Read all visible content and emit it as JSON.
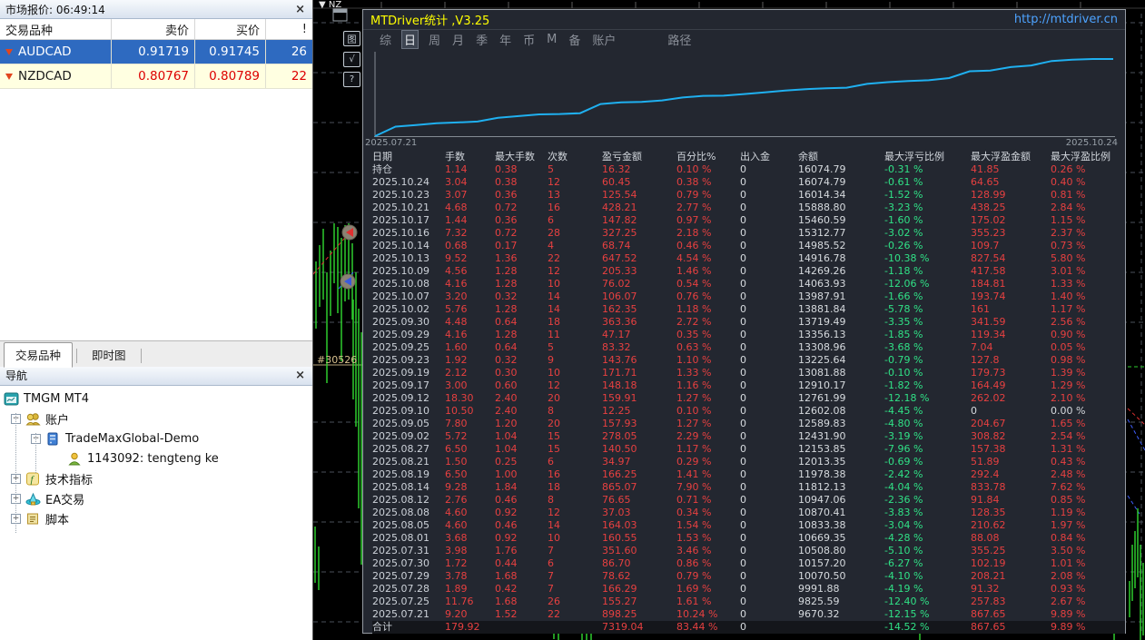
{
  "market_watch": {
    "title": "市场报价: 06:49:14",
    "close_label": "×",
    "columns": [
      "交易品种",
      "卖价",
      "买价",
      "!"
    ],
    "rows": [
      {
        "symbol": "AUDCAD",
        "bid": "0.91719",
        "ask": "0.91745",
        "spread": "26",
        "selected": true
      },
      {
        "symbol": "NZDCAD",
        "bid": "0.80767",
        "ask": "0.80789",
        "spread": "22",
        "selected": false
      }
    ],
    "tabs": [
      {
        "label": "交易品种",
        "active": true
      },
      {
        "label": "即时图",
        "active": false
      }
    ]
  },
  "navigator": {
    "title": "导航",
    "close_label": "×",
    "items": [
      {
        "label": "TMGM MT4",
        "level": 0,
        "icon": "platform-icon",
        "expander": ""
      },
      {
        "label": "账户",
        "level": 1,
        "icon": "accounts-icon",
        "expander": "minus"
      },
      {
        "label": "TradeMaxGlobal-Demo",
        "level": 2,
        "icon": "server-icon",
        "expander": "minus"
      },
      {
        "label": "1143092: tengteng ke",
        "level": 3,
        "icon": "account-icon",
        "expander": ""
      },
      {
        "label": "技术指标",
        "level": 1,
        "icon": "indicators-icon",
        "expander": "plus"
      },
      {
        "label": "EA交易",
        "level": 1,
        "icon": "experts-icon",
        "expander": "plus"
      },
      {
        "label": "脚本",
        "level": 1,
        "icon": "scripts-icon",
        "expander": "plus"
      }
    ]
  },
  "chart_strip": {
    "symbol_fragment": "▼ NZ",
    "buttons": [
      "图",
      "√",
      "?"
    ],
    "order_label": "#30526"
  },
  "panel": {
    "title": "MTDriver统计 ,V3.25",
    "link": "http://mtdriver.cn",
    "toolbar": [
      "综",
      "日",
      "周",
      "月",
      "季",
      "年",
      "币",
      "M",
      "备",
      "账户",
      "路径"
    ],
    "toolbar_active": "日",
    "accent_title_color": "#ffff00",
    "link_color": "#4da3ff",
    "line_color": "#1fb0f0",
    "red": "#e64040",
    "green": "#30e186"
  },
  "chart_data": {
    "type": "line",
    "title": "余额曲线 (Balance curve)",
    "x_start_label": "2025.07.21",
    "x_end_label": "2025.10.24",
    "legend": "none",
    "grid": "off",
    "ylim": [
      8772,
      16075
    ],
    "series": [
      {
        "name": "余额",
        "values": [
          8772.07,
          9670.32,
          9825.59,
          9991.88,
          10070.5,
          10157.2,
          10508.8,
          10669.35,
          10833.38,
          10870.41,
          10947.06,
          11812.13,
          11978.38,
          12013.35,
          12153.85,
          12431.9,
          12589.83,
          12602.08,
          12761.99,
          12910.17,
          13081.88,
          13225.64,
          13308.96,
          13356.13,
          13719.49,
          13881.84,
          13987.91,
          14063.93,
          14269.26,
          14916.78,
          14985.52,
          15312.77,
          15460.59,
          15888.8,
          16014.34,
          16074.79,
          16074.79
        ]
      }
    ]
  },
  "stats_table": {
    "columns": [
      "日期",
      "手数",
      "最大手数",
      "次数",
      "盈亏金额",
      "百分比%",
      "出入金",
      "余额",
      "最大浮亏比例",
      "最大浮盈金额",
      "最大浮盈比例"
    ],
    "rows": [
      [
        "持仓",
        "1.14",
        "0.38",
        "5",
        "16.32",
        "0.10 %",
        "0",
        "16074.79",
        "-0.31 %",
        "41.85",
        "0.26 %"
      ],
      [
        "2025.10.24",
        "3.04",
        "0.38",
        "12",
        "60.45",
        "0.38 %",
        "0",
        "16074.79",
        "-0.61 %",
        "64.65",
        "0.40 %"
      ],
      [
        "2025.10.23",
        "3.07",
        "0.36",
        "13",
        "125.54",
        "0.79 %",
        "0",
        "16014.34",
        "-1.52 %",
        "128.99",
        "0.81 %"
      ],
      [
        "2025.10.21",
        "4.68",
        "0.72",
        "16",
        "428.21",
        "2.77 %",
        "0",
        "15888.80",
        "-3.23 %",
        "438.25",
        "2.84 %"
      ],
      [
        "2025.10.17",
        "1.44",
        "0.36",
        "6",
        "147.82",
        "0.97 %",
        "0",
        "15460.59",
        "-1.60 %",
        "175.02",
        "1.15 %"
      ],
      [
        "2025.10.16",
        "7.32",
        "0.72",
        "28",
        "327.25",
        "2.18 %",
        "0",
        "15312.77",
        "-3.02 %",
        "355.23",
        "2.37 %"
      ],
      [
        "2025.10.14",
        "0.68",
        "0.17",
        "4",
        "68.74",
        "0.46 %",
        "0",
        "14985.52",
        "-0.26 %",
        "109.7",
        "0.73 %"
      ],
      [
        "2025.10.13",
        "9.52",
        "1.36",
        "22",
        "647.52",
        "4.54 %",
        "0",
        "14916.78",
        "-10.38 %",
        "827.54",
        "5.80 %"
      ],
      [
        "2025.10.09",
        "4.56",
        "1.28",
        "12",
        "205.33",
        "1.46 %",
        "0",
        "14269.26",
        "-1.18 %",
        "417.58",
        "3.01 %"
      ],
      [
        "2025.10.08",
        "4.16",
        "1.28",
        "10",
        "76.02",
        "0.54 %",
        "0",
        "14063.93",
        "-12.06 %",
        "184.81",
        "1.33 %"
      ],
      [
        "2025.10.07",
        "3.20",
        "0.32",
        "14",
        "106.07",
        "0.76 %",
        "0",
        "13987.91",
        "-1.66 %",
        "193.74",
        "1.40 %"
      ],
      [
        "2025.10.02",
        "5.76",
        "1.28",
        "14",
        "162.35",
        "1.18 %",
        "0",
        "13881.84",
        "-5.78 %",
        "161",
        "1.17 %"
      ],
      [
        "2025.09.30",
        "4.48",
        "0.64",
        "18",
        "363.36",
        "2.72 %",
        "0",
        "13719.49",
        "-3.35 %",
        "341.59",
        "2.56 %"
      ],
      [
        "2025.09.29",
        "4.16",
        "1.28",
        "11",
        "47.17",
        "0.35 %",
        "0",
        "13356.13",
        "-1.85 %",
        "119.34",
        "0.90 %"
      ],
      [
        "2025.09.25",
        "1.60",
        "0.64",
        "5",
        "83.32",
        "0.63 %",
        "0",
        "13308.96",
        "-3.68 %",
        "7.04",
        "0.05 %"
      ],
      [
        "2025.09.23",
        "1.92",
        "0.32",
        "9",
        "143.76",
        "1.10 %",
        "0",
        "13225.64",
        "-0.79 %",
        "127.8",
        "0.98 %"
      ],
      [
        "2025.09.19",
        "2.12",
        "0.30",
        "10",
        "171.71",
        "1.33 %",
        "0",
        "13081.88",
        "-0.10 %",
        "179.73",
        "1.39 %"
      ],
      [
        "2025.09.17",
        "3.00",
        "0.60",
        "12",
        "148.18",
        "1.16 %",
        "0",
        "12910.17",
        "-1.82 %",
        "164.49",
        "1.29 %"
      ],
      [
        "2025.09.12",
        "18.30",
        "2.40",
        "20",
        "159.91",
        "1.27 %",
        "0",
        "12761.99",
        "-12.18 %",
        "262.02",
        "2.10 %"
      ],
      [
        "2025.09.10",
        "10.50",
        "2.40",
        "8",
        "12.25",
        "0.10 %",
        "0",
        "12602.08",
        "-4.45 %",
        "0",
        "0.00 %"
      ],
      [
        "2025.09.05",
        "7.80",
        "1.20",
        "20",
        "157.93",
        "1.27 %",
        "0",
        "12589.83",
        "-4.80 %",
        "204.67",
        "1.65 %"
      ],
      [
        "2025.09.02",
        "5.72",
        "1.04",
        "15",
        "278.05",
        "2.29 %",
        "0",
        "12431.90",
        "-3.19 %",
        "308.82",
        "2.54 %"
      ],
      [
        "2025.08.27",
        "6.50",
        "1.04",
        "15",
        "140.50",
        "1.17 %",
        "0",
        "12153.85",
        "-7.96 %",
        "157.38",
        "1.31 %"
      ],
      [
        "2025.08.21",
        "1.50",
        "0.25",
        "6",
        "34.97",
        "0.29 %",
        "0",
        "12013.35",
        "-0.69 %",
        "51.89",
        "0.43 %"
      ],
      [
        "2025.08.19",
        "6.50",
        "1.00",
        "16",
        "166.25",
        "1.41 %",
        "0",
        "11978.38",
        "-2.42 %",
        "292.4",
        "2.48 %"
      ],
      [
        "2025.08.14",
        "9.28",
        "1.84",
        "18",
        "865.07",
        "7.90 %",
        "0",
        "11812.13",
        "-4.04 %",
        "833.78",
        "7.62 %"
      ],
      [
        "2025.08.12",
        "2.76",
        "0.46",
        "8",
        "76.65",
        "0.71 %",
        "0",
        "10947.06",
        "-2.36 %",
        "91.84",
        "0.85 %"
      ],
      [
        "2025.08.08",
        "4.60",
        "0.92",
        "12",
        "37.03",
        "0.34 %",
        "0",
        "10870.41",
        "-3.83 %",
        "128.35",
        "1.19 %"
      ],
      [
        "2025.08.05",
        "4.60",
        "0.46",
        "14",
        "164.03",
        "1.54 %",
        "0",
        "10833.38",
        "-3.04 %",
        "210.62",
        "1.97 %"
      ],
      [
        "2025.08.01",
        "3.68",
        "0.92",
        "10",
        "160.55",
        "1.53 %",
        "0",
        "10669.35",
        "-4.28 %",
        "88.08",
        "0.84 %"
      ],
      [
        "2025.07.31",
        "3.98",
        "1.76",
        "7",
        "351.60",
        "3.46 %",
        "0",
        "10508.80",
        "-5.10 %",
        "355.25",
        "3.50 %"
      ],
      [
        "2025.07.30",
        "1.72",
        "0.44",
        "6",
        "86.70",
        "0.86 %",
        "0",
        "10157.20",
        "-6.27 %",
        "102.19",
        "1.01 %"
      ],
      [
        "2025.07.29",
        "3.78",
        "1.68",
        "7",
        "78.62",
        "0.79 %",
        "0",
        "10070.50",
        "-4.10 %",
        "208.21",
        "2.08 %"
      ],
      [
        "2025.07.28",
        "1.89",
        "0.42",
        "7",
        "166.29",
        "1.69 %",
        "0",
        "9991.88",
        "-4.19 %",
        "91.32",
        "0.93 %"
      ],
      [
        "2025.07.25",
        "11.76",
        "1.68",
        "26",
        "155.27",
        "1.61 %",
        "0",
        "9825.59",
        "-12.40 %",
        "257.83",
        "2.67 %"
      ],
      [
        "2025.07.21",
        "9.20",
        "1.52",
        "22",
        "898.25",
        "10.24 %",
        "0",
        "9670.32",
        "-12.15 %",
        "867.65",
        "9.89 %"
      ]
    ],
    "total_row": [
      "合计",
      "179.92",
      "",
      "",
      "7319.04",
      "83.44 %",
      "0",
      "",
      "-14.52 %",
      "867.65",
      "9.89 %"
    ]
  }
}
